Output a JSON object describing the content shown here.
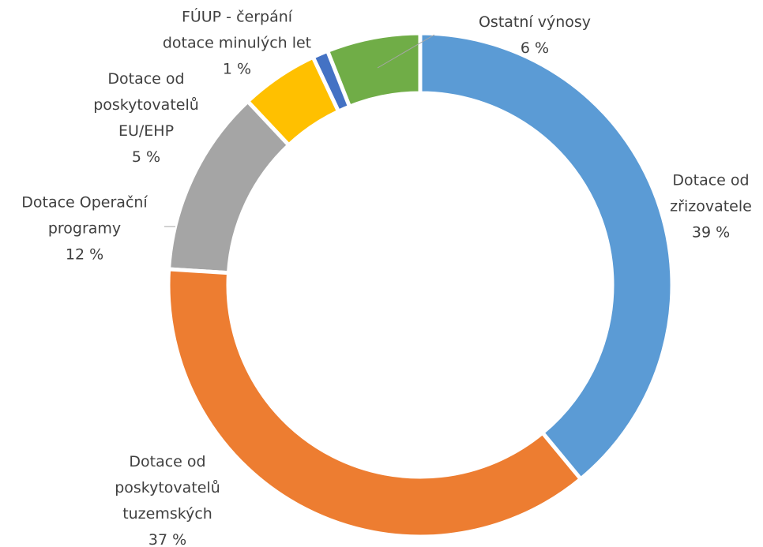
{
  "chart_data": {
    "type": "donut",
    "categories": [
      "Dotace od zřizovatele",
      "Dotace od poskytovatelů tuzemských",
      "Dotace Operační programy",
      "Dotace od poskytovatelů EU/EHP",
      "FÚUP - čerpání dotace minulých let",
      "Ostatní výnosy"
    ],
    "values": [
      39,
      37,
      12,
      5,
      1,
      6
    ],
    "value_labels": [
      "39 %",
      "37 %",
      "12 %",
      "5 %",
      "1 %",
      "6 %"
    ],
    "colors": [
      "#5b9bd5",
      "#ed7d31",
      "#a5a5a5",
      "#ffc000",
      "#4472c4",
      "#70ad47"
    ]
  }
}
